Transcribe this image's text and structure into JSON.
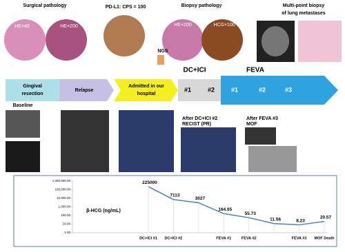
{
  "panel": {
    "top_labels": {
      "surgical": "Surgical pathology",
      "he40": "HE×40",
      "he200a": "HE×200",
      "pdl1": "PD-L1: CPS = 100",
      "ngs": "NGS",
      "biopsy": "Biopsy pathology",
      "he200b": "HE×200",
      "hcg100": "HCG×100",
      "multi1": "Multi-point biopsy",
      "multi2": "of lung metastases"
    },
    "timeline": {
      "gingival1": "Gingival",
      "gingival2": "resection",
      "relapse": "Relapse",
      "admitted1": "Admitted in our",
      "admitted2": "hospital",
      "dcici": "DC+ICI",
      "dc1": "#1",
      "dc2": "#2",
      "feva": "FEVA",
      "f1": "#1",
      "f2": "#2",
      "f3": "#3"
    },
    "image_labels": {
      "baseline": "Baseline",
      "after_dc": "After DC+ICI #2",
      "recist": "RECIST (PR)",
      "after_feva": "After FEVA #3",
      "mof": "MOF"
    }
  },
  "chart_data": {
    "type": "line",
    "y_label": "β-HCG (ng/mL)",
    "log_scale": true,
    "color": "#4a7fc1",
    "categories": [
      "DC+ICI #1",
      "DC+ICI #2",
      null,
      "FEVA #1",
      "FEVA #2",
      null,
      "FEVA #3",
      "MOF Death"
    ],
    "values": [
      225000,
      7113,
      3027,
      164.65,
      55.73,
      11.56,
      8.23,
      20.57
    ],
    "ylim": [
      1,
      1000000
    ],
    "yticks": [
      {
        "value": 1,
        "label": "1.00"
      },
      {
        "value": 10,
        "label": "10.00"
      },
      {
        "value": 100,
        "label": "100.00"
      },
      {
        "value": 1000,
        "label": "1,000.00"
      },
      {
        "value": 10000,
        "label": "10,000.00"
      },
      {
        "value": 100000,
        "label": "100,000.00"
      },
      {
        "value": 1000000,
        "label": "1,000,000.00"
      }
    ],
    "grid": false
  }
}
